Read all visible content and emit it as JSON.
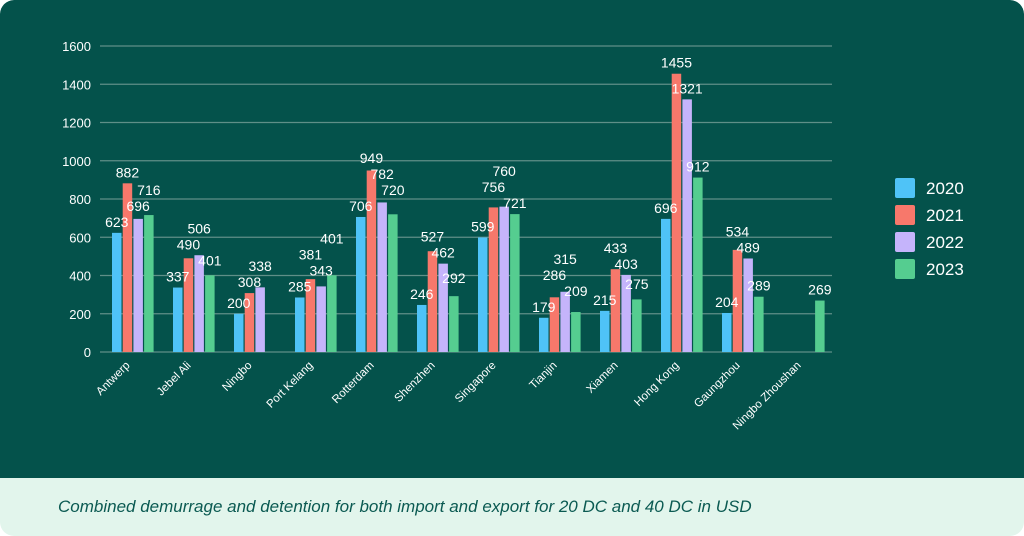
{
  "caption": "Combined demurrage and detention for both import and export for 20 DC and 40 DC in USD",
  "chart_data": {
    "type": "bar",
    "categories": [
      "Antwerp",
      "Jebel Ali",
      "Ningbo",
      "Port Kelang",
      "Rotterdam",
      "Shenzhen",
      "Singapore",
      "Tianjin",
      "Xiamen",
      "Hong Kong",
      "Gaungzhou",
      "Ningbo Zhoushan"
    ],
    "series": [
      {
        "name": "2020",
        "color": "#4fc3f7",
        "values": [
          623,
          337,
          200,
          285,
          706,
          246,
          599,
          179,
          215,
          696,
          204,
          null
        ]
      },
      {
        "name": "2021",
        "color": "#f7786b",
        "values": [
          882,
          490,
          308,
          381,
          949,
          527,
          756,
          286,
          433,
          1455,
          534,
          null
        ]
      },
      {
        "name": "2022",
        "color": "#c5b4fb",
        "values": [
          696,
          506,
          338,
          343,
          782,
          462,
          760,
          315,
          403,
          1321,
          489,
          null
        ]
      },
      {
        "name": "2023",
        "color": "#55cd90",
        "values": [
          716,
          401,
          null,
          401,
          720,
          292,
          721,
          209,
          275,
          912,
          289,
          269
        ]
      }
    ],
    "yticks": [
      0,
      200,
      400,
      600,
      800,
      1000,
      1200,
      1400,
      1600
    ],
    "ylim": [
      0,
      1600
    ],
    "grid": true,
    "legend": "right",
    "title": "",
    "xlabel": "",
    "ylabel": ""
  }
}
